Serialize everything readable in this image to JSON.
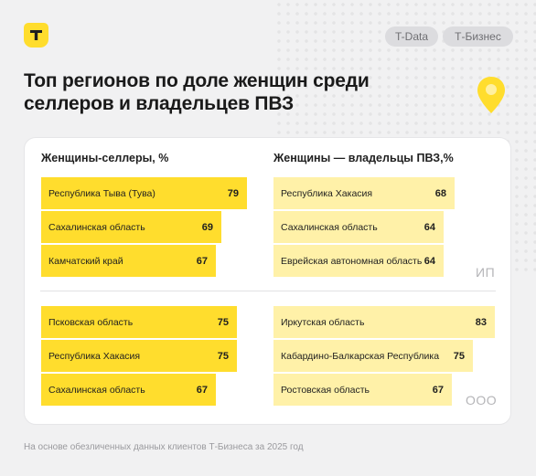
{
  "header": {
    "tags": [
      "T-Data",
      "Т-Бизнес"
    ],
    "title_line1": "Топ регионов по доле женщин среди",
    "title_line2": "селлеров и владельцев ПВЗ"
  },
  "colors": {
    "accent": "#ffdd2d",
    "accent_light": "#fff1a8",
    "background": "#f1f1f2"
  },
  "icons": {
    "logo": "tbank-shield-icon",
    "pin": "location-pin-icon"
  },
  "chart_data": [
    {
      "type": "bar",
      "title": "Женщины-селлеры, %",
      "group": "ИП",
      "categories": [
        "Республика Тыва (Тува)",
        "Сахалинская область",
        "Камчатский край"
      ],
      "values": [
        79,
        69,
        67
      ]
    },
    {
      "type": "bar",
      "title": "Женщины — владельцы ПВЗ,%",
      "group": "ИП",
      "categories": [
        "Республика Хакасия",
        "Сахалинская область",
        "Еврейская автономная область"
      ],
      "values": [
        68,
        64,
        64
      ]
    },
    {
      "type": "bar",
      "title": "Женщины-селлеры, %",
      "group": "ООО",
      "categories": [
        "Псковская область",
        "Республика Хакасия",
        "Сахалинская область"
      ],
      "values": [
        75,
        75,
        67
      ]
    },
    {
      "type": "bar",
      "title": "Женщины — владельцы ПВЗ,%",
      "group": "ООО",
      "categories": [
        "Иркутская область",
        "Кабардино-Балкарская Республика",
        "Ростовская область"
      ],
      "values": [
        83,
        75,
        67
      ]
    }
  ],
  "group_labels": {
    "ip": "ИП",
    "ooo": "ООО"
  },
  "footnote": "На основе обезличенных данных клиентов Т-Бизнеса за 2025 год"
}
